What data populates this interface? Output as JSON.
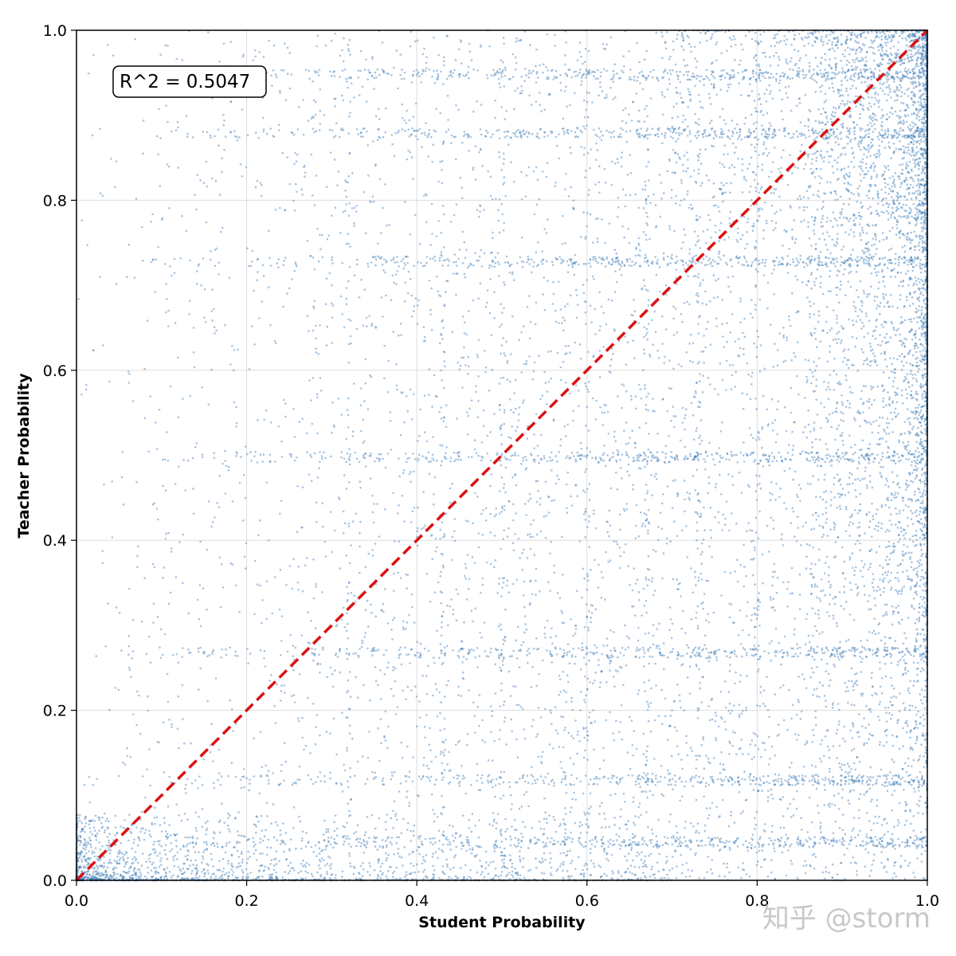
{
  "chart_data": {
    "type": "scatter",
    "xlabel": "Student Probability",
    "ylabel": "Teacher Probability",
    "xlim": [
      0.0,
      1.0
    ],
    "ylim": [
      0.0,
      1.0
    ],
    "x_ticks": [
      "0.0",
      "0.2",
      "0.4",
      "0.6",
      "0.8",
      "1.0"
    ],
    "y_ticks": [
      "0.0",
      "0.2",
      "0.4",
      "0.6",
      "0.8",
      "1.0"
    ],
    "grid": true,
    "annotation": "R^2 = 0.5047",
    "reference_line": {
      "style": "dashed",
      "from": [
        0,
        0
      ],
      "to": [
        1,
        1
      ],
      "color": "#dd1111"
    },
    "point_color": "#3f7db5",
    "horizontal_bands_y": [
      0.045,
      0.118,
      0.268,
      0.498,
      0.728,
      0.879,
      0.948
    ],
    "vertical_bands_x": [
      0.32,
      0.43,
      0.5,
      0.6,
      0.67,
      0.73,
      0.8
    ],
    "sample_points": [
      [
        0.02,
        0.01
      ],
      [
        0.05,
        0.02
      ],
      [
        0.1,
        0.04
      ],
      [
        0.2,
        0.12
      ],
      [
        0.35,
        0.27
      ],
      [
        0.5,
        0.5
      ],
      [
        0.62,
        0.73
      ],
      [
        0.75,
        0.88
      ],
      [
        0.9,
        0.95
      ],
      [
        0.99,
        0.99
      ],
      [
        0.97,
        0.5
      ],
      [
        0.95,
        0.27
      ],
      [
        0.98,
        0.73
      ],
      [
        0.3,
        0.7
      ],
      [
        0.7,
        0.2
      ]
    ]
  },
  "watermark": "知乎 @storm"
}
